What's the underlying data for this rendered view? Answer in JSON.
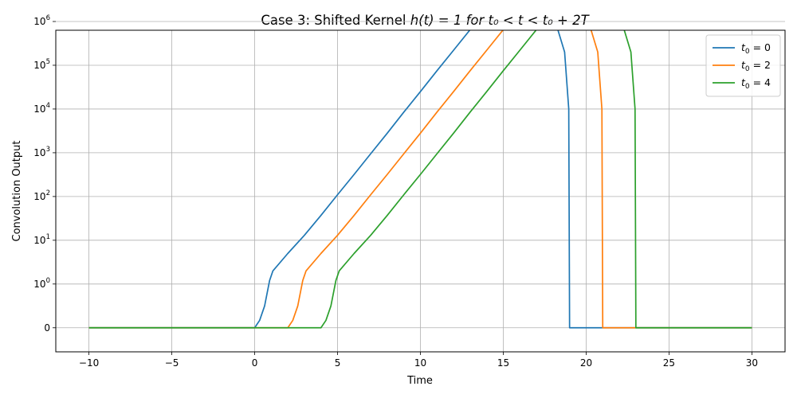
{
  "chart_data": {
    "type": "line",
    "title_prefix": "Case 3: Shifted Kernel ",
    "title_math": "h(t) = 1 for t₀ < t < t₀ + 2T",
    "xlabel": "Time",
    "ylabel": "Convolution Output",
    "xlim": [
      -12,
      32
    ],
    "y_scale": "symlog",
    "ylim_decades": [
      -0.55,
      6.8
    ],
    "grid": true,
    "legend_position": "top-right",
    "x_ticks": [
      -10,
      -5,
      0,
      5,
      10,
      15,
      20,
      25,
      30
    ],
    "x_tick_labels": [
      "−10",
      "−5",
      "0",
      "5",
      "10",
      "15",
      "20",
      "25",
      "30"
    ],
    "y_ticks": [
      {
        "value": 0,
        "label": "0",
        "exp": ""
      },
      {
        "value": 1,
        "label": "10",
        "exp": "0"
      },
      {
        "value": 10,
        "label": "10",
        "exp": "1"
      },
      {
        "value": 100,
        "label": "10",
        "exp": "2"
      },
      {
        "value": 1000,
        "label": "10",
        "exp": "3"
      },
      {
        "value": 10000,
        "label": "10",
        "exp": "4"
      },
      {
        "value": 100000,
        "label": "10",
        "exp": "5"
      },
      {
        "value": 1000000,
        "label": "10",
        "exp": "6"
      }
    ],
    "series": [
      {
        "name_sym": "t",
        "name_sub": "0",
        "name_rest": " = 0",
        "color": "#1f77b4",
        "points": [
          [
            -10,
            0
          ],
          [
            0,
            0
          ],
          [
            0.3,
            0.17
          ],
          [
            0.6,
            0.5
          ],
          [
            0.9,
            1.2
          ],
          [
            1.1,
            2
          ],
          [
            2,
            5
          ],
          [
            3,
            13
          ],
          [
            4,
            37
          ],
          [
            5,
            110
          ],
          [
            6,
            320
          ],
          [
            7,
            950
          ],
          [
            8,
            2800
          ],
          [
            9,
            8500
          ],
          [
            10,
            25000
          ],
          [
            11,
            75000
          ],
          [
            12,
            220000
          ],
          [
            13,
            650000
          ],
          [
            14,
            1900000
          ],
          [
            15,
            3300000
          ],
          [
            16,
            3200000
          ],
          [
            17,
            2900000
          ],
          [
            18,
            1500000
          ],
          [
            18.7,
            200000
          ],
          [
            18.95,
            10000
          ],
          [
            19,
            0
          ],
          [
            30,
            0
          ]
        ]
      },
      {
        "name_sym": "t",
        "name_sub": "0",
        "name_rest": " = 2",
        "color": "#ff7f0e",
        "points": [
          [
            -10,
            0
          ],
          [
            2,
            0
          ],
          [
            2.3,
            0.17
          ],
          [
            2.6,
            0.5
          ],
          [
            2.9,
            1.2
          ],
          [
            3.1,
            2
          ],
          [
            4,
            5
          ],
          [
            5,
            13
          ],
          [
            6,
            37
          ],
          [
            7,
            110
          ],
          [
            8,
            320
          ],
          [
            9,
            950
          ],
          [
            10,
            2800
          ],
          [
            11,
            8500
          ],
          [
            12,
            25000
          ],
          [
            13,
            75000
          ],
          [
            14,
            220000
          ],
          [
            15,
            650000
          ],
          [
            16,
            1900000
          ],
          [
            17,
            3300000
          ],
          [
            18,
            3200000
          ],
          [
            19,
            2900000
          ],
          [
            20,
            1500000
          ],
          [
            20.7,
            200000
          ],
          [
            20.95,
            10000
          ],
          [
            21,
            0
          ],
          [
            30,
            0
          ]
        ]
      },
      {
        "name_sym": "t",
        "name_sub": "0",
        "name_rest": " = 4",
        "color": "#2ca02c",
        "points": [
          [
            -10,
            0
          ],
          [
            4,
            0
          ],
          [
            4.3,
            0.17
          ],
          [
            4.6,
            0.5
          ],
          [
            4.9,
            1.2
          ],
          [
            5.1,
            2
          ],
          [
            6,
            5
          ],
          [
            7,
            13
          ],
          [
            8,
            37
          ],
          [
            9,
            110
          ],
          [
            10,
            320
          ],
          [
            11,
            950
          ],
          [
            12,
            2800
          ],
          [
            13,
            8500
          ],
          [
            14,
            25000
          ],
          [
            15,
            75000
          ],
          [
            16,
            220000
          ],
          [
            17,
            650000
          ],
          [
            18,
            1900000
          ],
          [
            19,
            3300000
          ],
          [
            20,
            3200000
          ],
          [
            21,
            2900000
          ],
          [
            22,
            1500000
          ],
          [
            22.7,
            200000
          ],
          [
            22.95,
            10000
          ],
          [
            23,
            0
          ],
          [
            30,
            0
          ]
        ]
      }
    ]
  }
}
